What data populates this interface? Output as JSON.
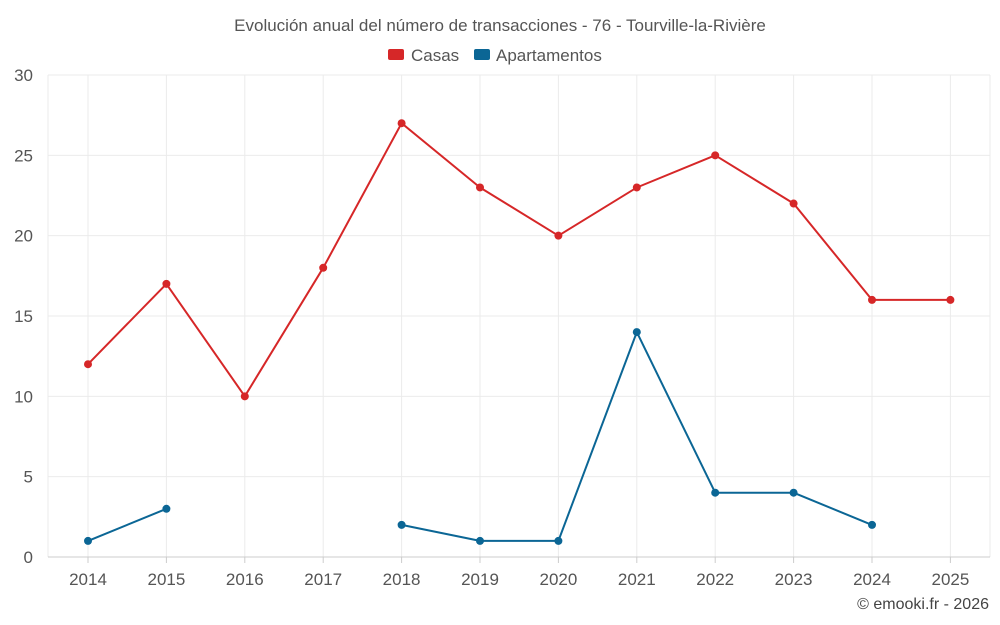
{
  "chart_data": {
    "type": "line",
    "title": "Evolución anual del número de transacciones - 76 - Tourville-la-Rivière",
    "categories": [
      "2014",
      "2015",
      "2016",
      "2017",
      "2018",
      "2019",
      "2020",
      "2021",
      "2022",
      "2023",
      "2024",
      "2025"
    ],
    "series": [
      {
        "name": "Casas",
        "color": "#d62728",
        "values": [
          12,
          17,
          10,
          18,
          27,
          23,
          20,
          23,
          25,
          22,
          16,
          16
        ]
      },
      {
        "name": "Apartamentos",
        "color": "#0b6695",
        "values": [
          1,
          3,
          null,
          null,
          2,
          1,
          1,
          14,
          4,
          4,
          2,
          null
        ]
      }
    ],
    "ylim": [
      0,
      30
    ],
    "yticks": [
      "0",
      "5",
      "10",
      "15",
      "20",
      "25",
      "30"
    ],
    "legend_position": "top-center",
    "grid": true,
    "xlabel": "",
    "ylabel": ""
  },
  "credit": "© emooki.fr - 2026"
}
